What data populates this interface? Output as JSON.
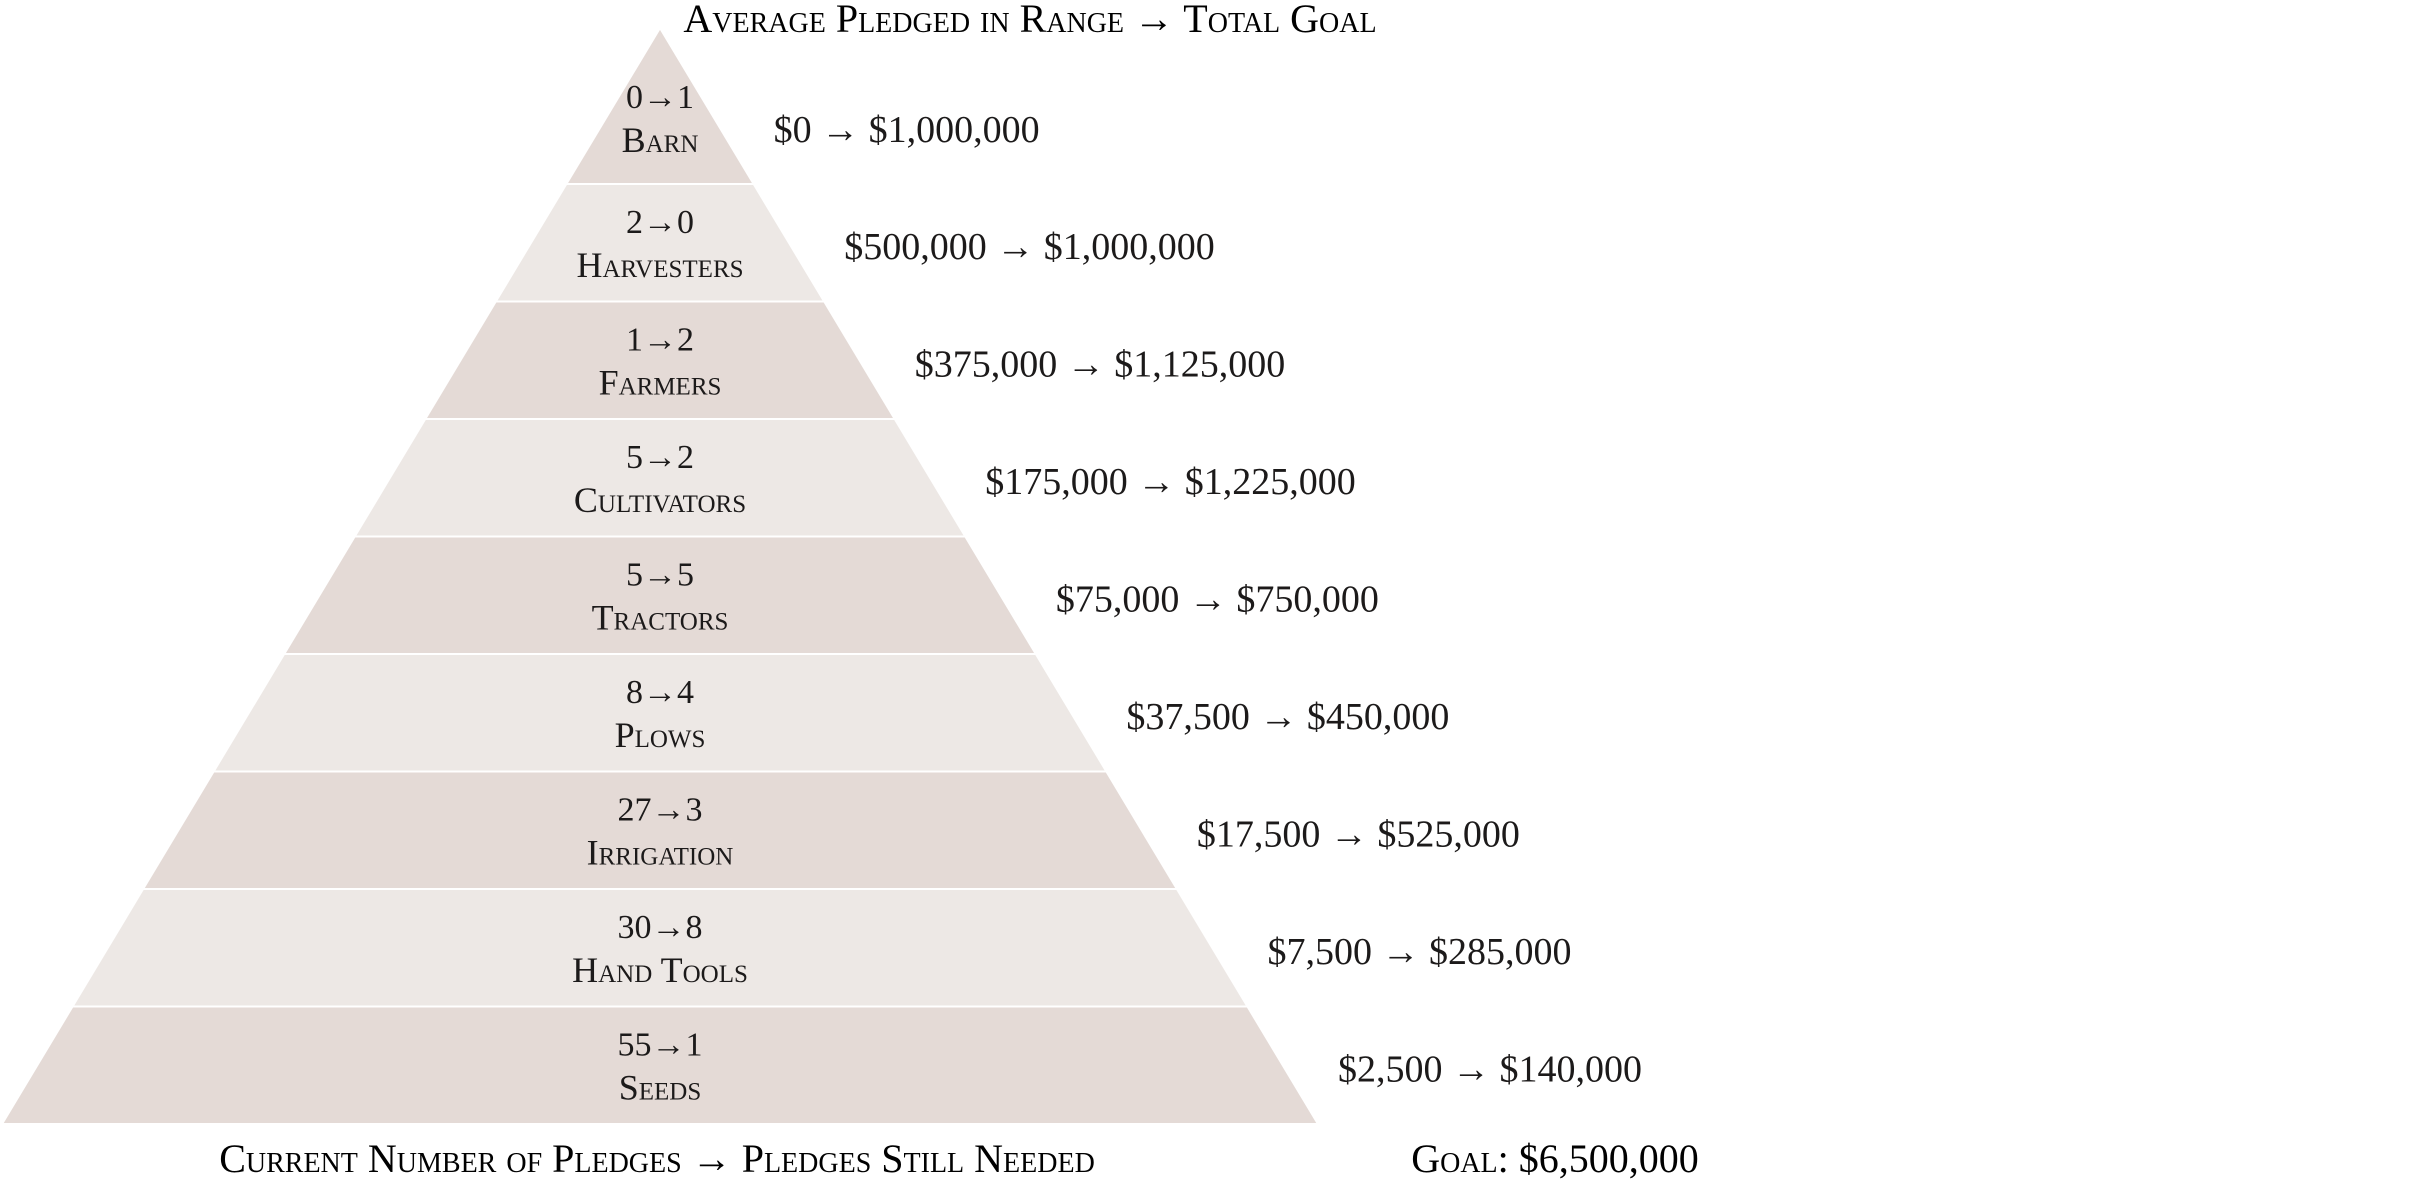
{
  "header": {
    "title": "Average Pledged in Range → Total Goal"
  },
  "footer": {
    "pledges_caption": "Current Number of Pledges → Pledges Still Needed",
    "goal": "Goal: $6,500,000"
  },
  "colors": {
    "band_dark": "#e4dad6",
    "band_light": "#ede8e5",
    "separator": "#ffffff",
    "text": "#1c1a1a"
  },
  "tiers": [
    {
      "pledges": "0→1",
      "name": "Barn",
      "range": "$0 → $1,000,000"
    },
    {
      "pledges": "2→0",
      "name": "Harvesters",
      "range": "$500,000 → $1,000,000"
    },
    {
      "pledges": "1→2",
      "name": "Farmers",
      "range": "$375,000 → $1,125,000"
    },
    {
      "pledges": "5→2",
      "name": "Cultivators",
      "range": "$175,000 → $1,225,000"
    },
    {
      "pledges": "5→5",
      "name": "Tractors",
      "range": "$75,000 → $750,000"
    },
    {
      "pledges": "8→4",
      "name": "Plows",
      "range": "$37,500 → $450,000"
    },
    {
      "pledges": "27→3",
      "name": "Irrigation",
      "range": "$17,500 → $525,000"
    },
    {
      "pledges": "30→8",
      "name": "Hand Tools",
      "range": "$7,500 → $285,000"
    },
    {
      "pledges": "55→1",
      "name": "Seeds",
      "range": "$2,500 → $140,000"
    }
  ]
}
